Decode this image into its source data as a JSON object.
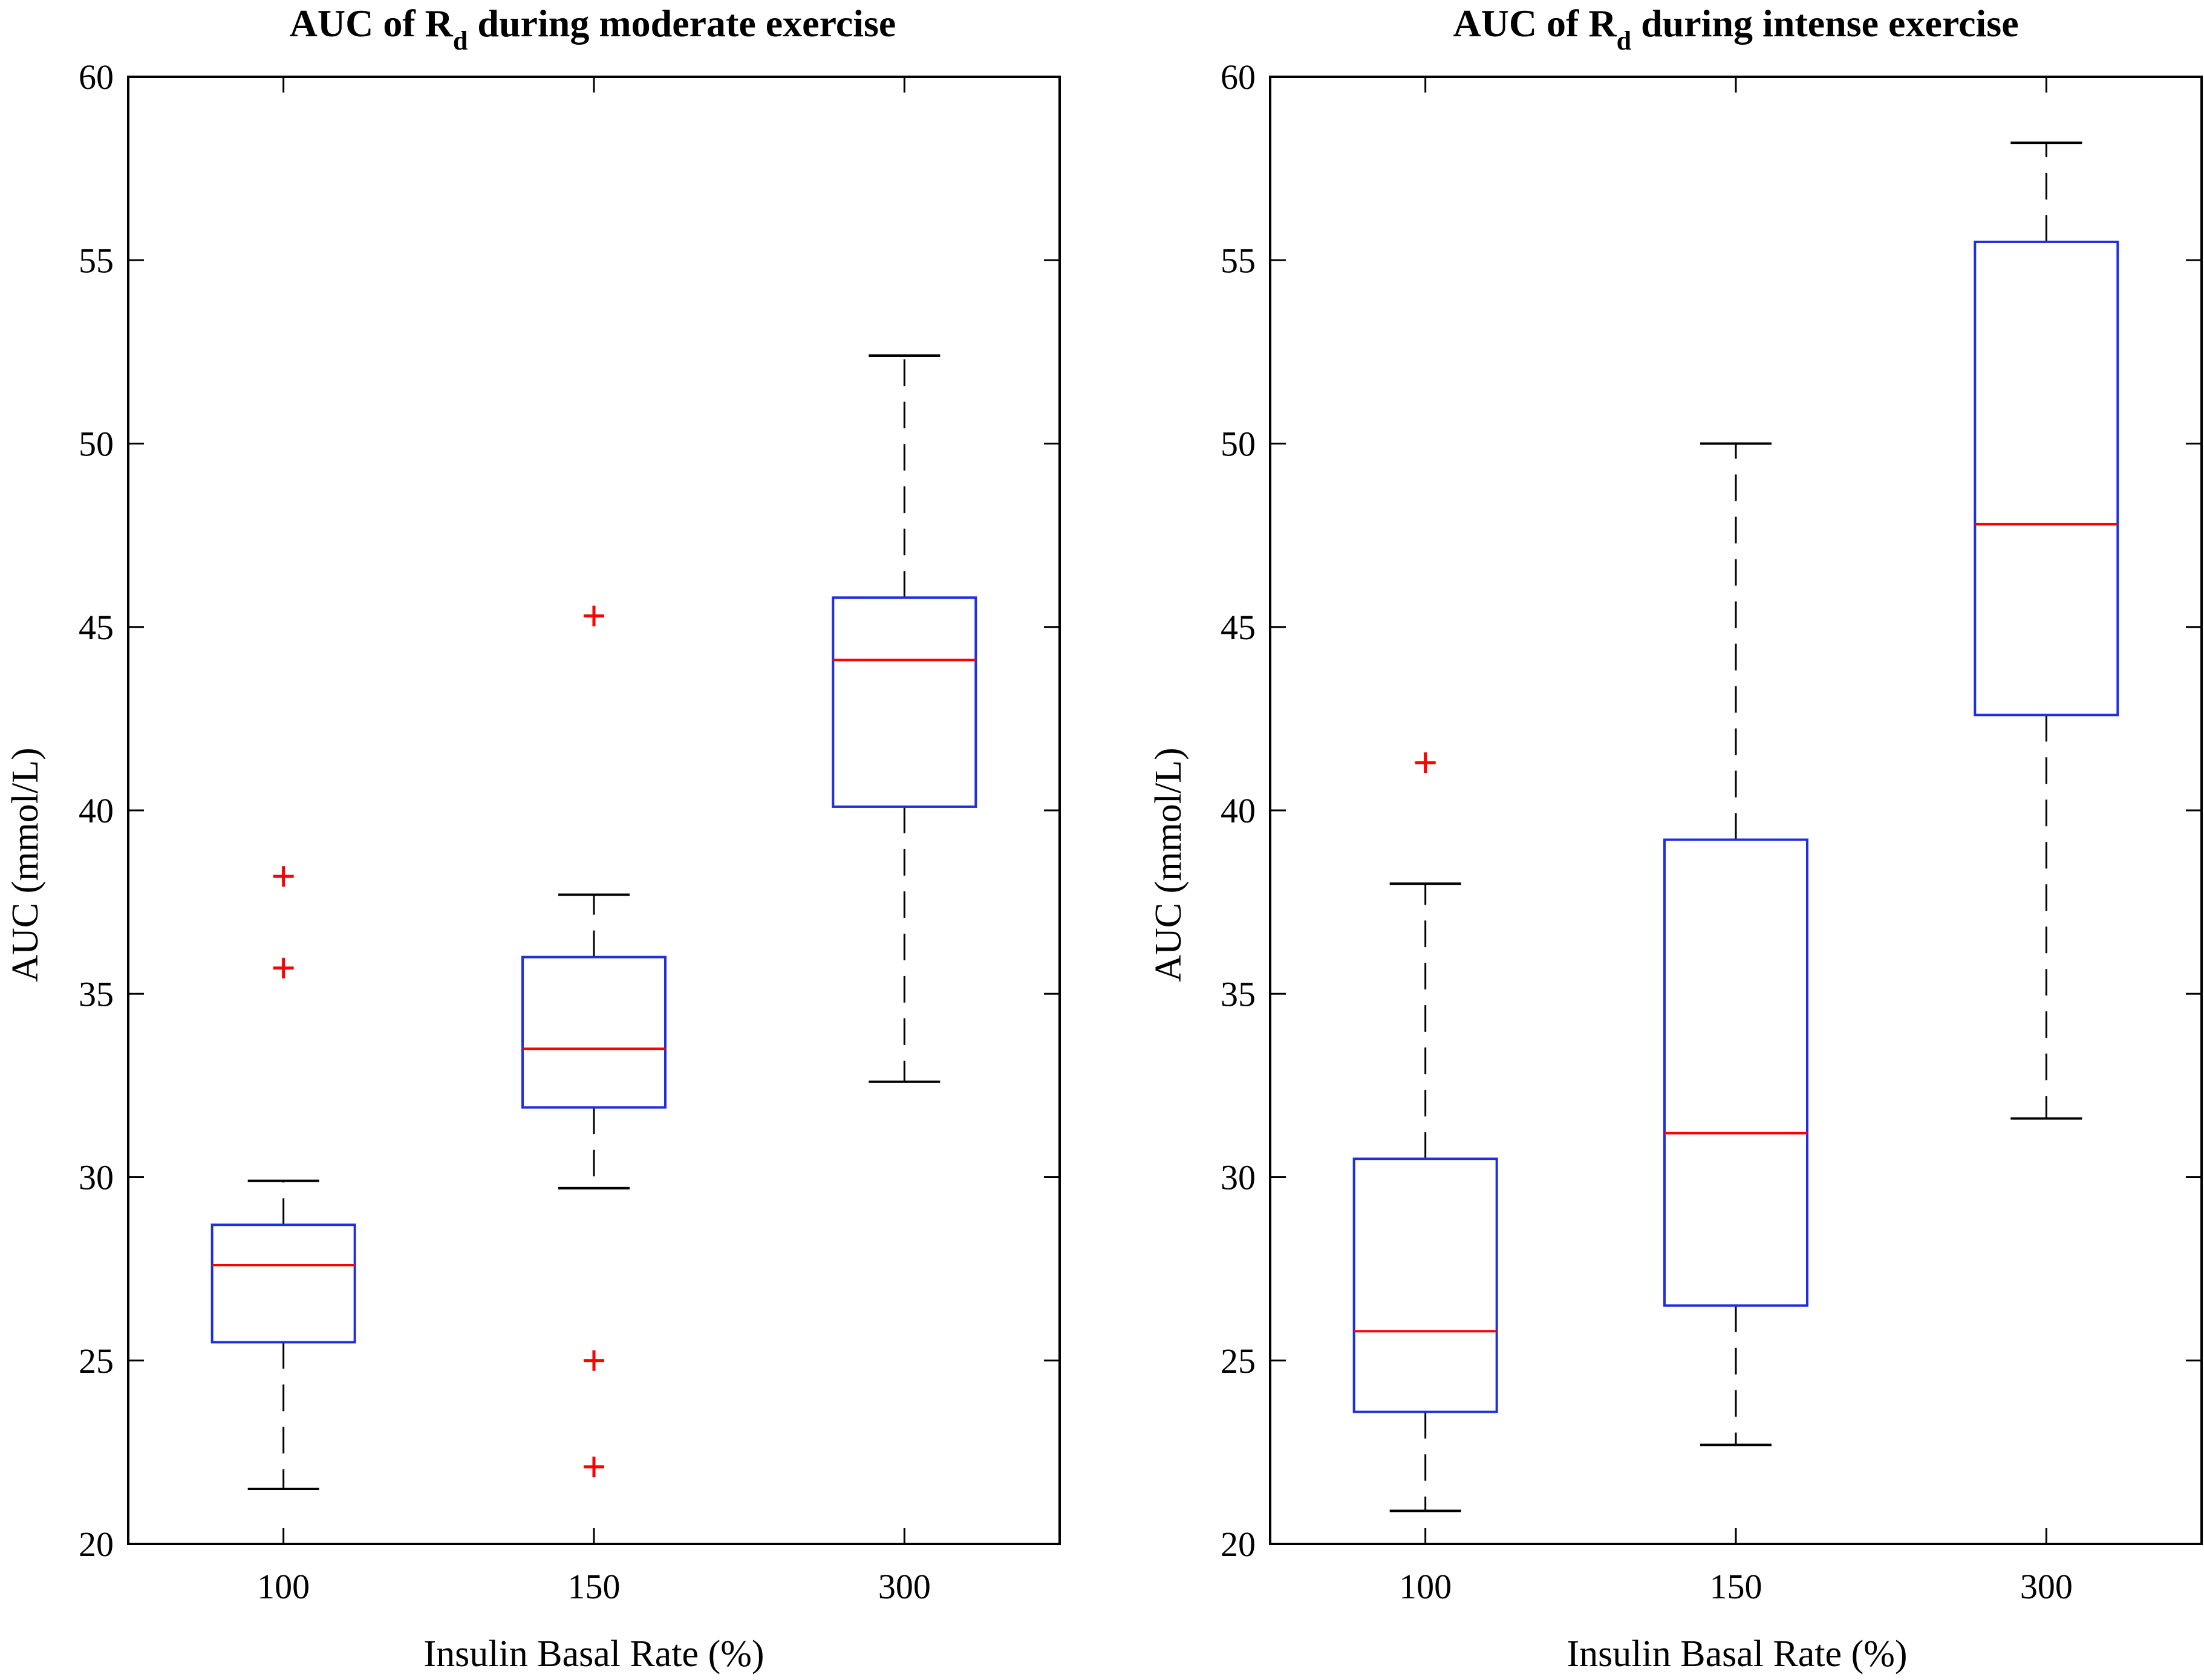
{
  "chart_data": [
    {
      "type": "boxplot",
      "title_prefix": "AUC of R",
      "title_subscript": "d",
      "title_suffix": " during moderate exercise",
      "xlabel": "Insulin Basal Rate (%)",
      "ylabel": "AUC (mmol/L)",
      "ylim": [
        20,
        60
      ],
      "yticks": [
        "20",
        "25",
        "30",
        "35",
        "40",
        "45",
        "50",
        "55",
        "60"
      ],
      "categories": [
        "100",
        "150",
        "300"
      ],
      "boxes": [
        {
          "category": "100",
          "whisker_low": 21.5,
          "q1": 25.5,
          "median": 27.6,
          "q3": 28.7,
          "whisker_high": 29.9,
          "outliers": [
            38.2,
            35.7
          ]
        },
        {
          "category": "150",
          "whisker_low": 29.7,
          "q1": 31.9,
          "median": 33.5,
          "q3": 36.0,
          "whisker_high": 37.7,
          "outliers": [
            45.3,
            25.0,
            22.1
          ]
        },
        {
          "category": "300",
          "whisker_low": 32.6,
          "q1": 40.1,
          "median": 44.1,
          "q3": 45.8,
          "whisker_high": 52.4,
          "outliers": []
        }
      ]
    },
    {
      "type": "boxplot",
      "title_prefix": "AUC of R",
      "title_subscript": "d",
      "title_suffix": " during intense exercise",
      "xlabel": "Insulin Basal Rate (%)",
      "ylabel": "AUC (mmol/L)",
      "ylim": [
        20,
        60
      ],
      "yticks": [
        "20",
        "25",
        "30",
        "35",
        "40",
        "45",
        "50",
        "55",
        "60"
      ],
      "categories": [
        "100",
        "150",
        "300"
      ],
      "boxes": [
        {
          "category": "100",
          "whisker_low": 20.9,
          "q1": 23.6,
          "median": 25.8,
          "q3": 30.5,
          "whisker_high": 38.0,
          "outliers": [
            41.3
          ]
        },
        {
          "category": "150",
          "whisker_low": 22.7,
          "q1": 26.5,
          "median": 31.2,
          "q3": 39.2,
          "whisker_high": 50.0,
          "outliers": []
        },
        {
          "category": "300",
          "whisker_low": 31.6,
          "q1": 42.6,
          "median": 47.8,
          "q3": 55.5,
          "whisker_high": 58.2,
          "outliers": []
        }
      ]
    }
  ],
  "colors": {
    "box": "#1f2fe0",
    "median": "#ff0000",
    "outlier": "#ff0000",
    "whisker": "#000000",
    "axes": "#000000"
  }
}
